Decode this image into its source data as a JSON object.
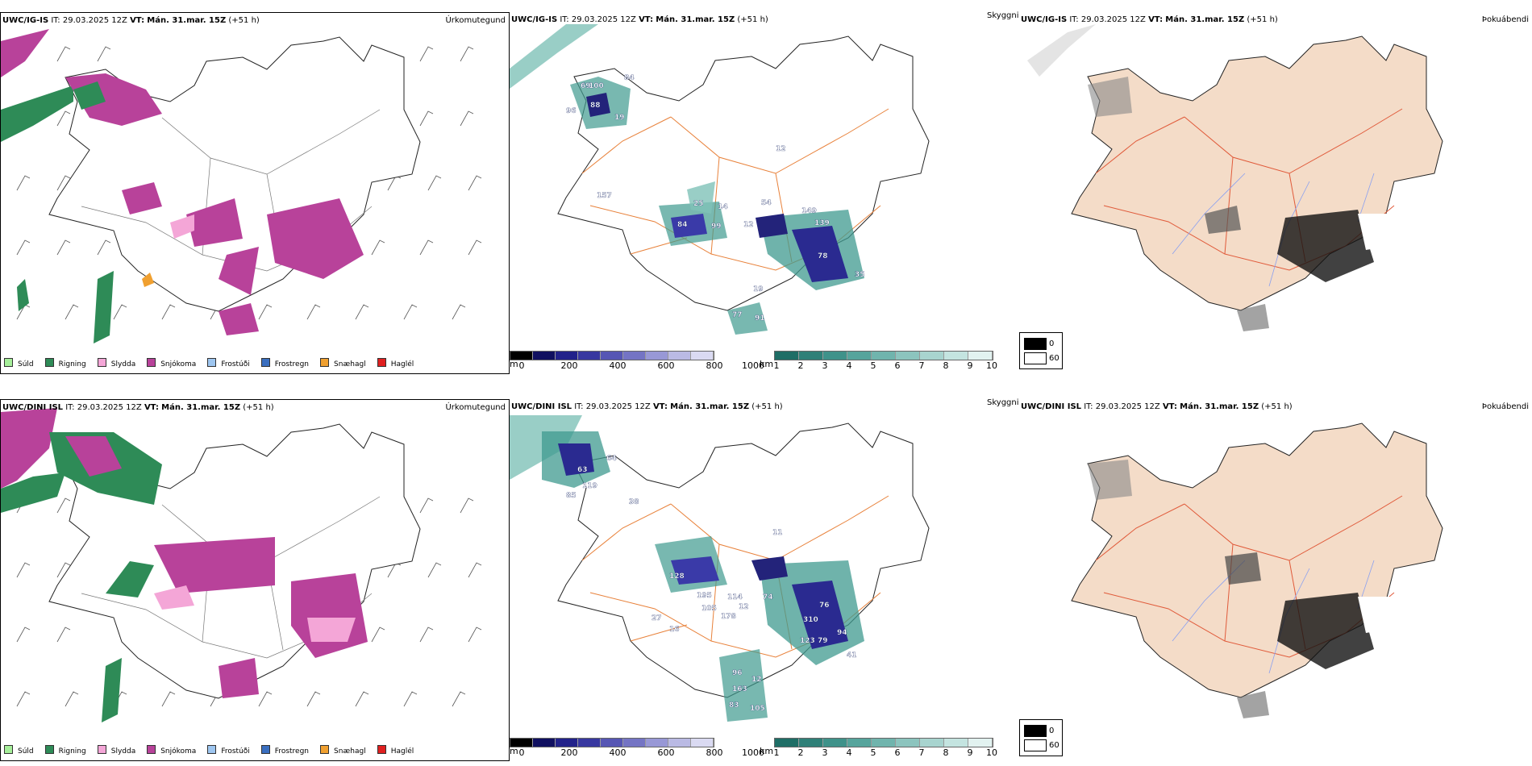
{
  "colors": {
    "sudd": "#a6ef9a",
    "rigning": "#2e8b57",
    "slydda": "#f4a6d7",
    "snjokoma": "#b8429a",
    "frostudi": "#9ec6f0",
    "frostregn": "#3a6fc0",
    "snaehagl": "#f0a030",
    "haglel": "#e02020",
    "land_orange": "#f4dcc8",
    "road_orange": "#e8813a",
    "teal": "#3f9a8f",
    "navy": "#23237a"
  },
  "rows": [
    {
      "left": {
        "model": "UWC/IG-IS",
        "it_label": "IT:",
        "it_value": "29.03.2025 12Z",
        "vt_label": "VT:",
        "vt_value": "Mán. 31.mar. 15Z",
        "lead": "(+51 h)",
        "title_right": "Úrkomutegund"
      },
      "middle": {
        "model": "UWC/IG-IS",
        "it_label": "IT:",
        "it_value": "29.03.2025 12Z",
        "vt_label": "VT:",
        "vt_value": "Mán. 31.mar. 15Z",
        "lead": "(+51 h)",
        "title_right": "Skyggni",
        "labels": [
          "84",
          "69",
          "100",
          "88",
          "96",
          "19",
          "12",
          "157",
          "54",
          "149",
          "139",
          "84",
          "99",
          "12",
          "78",
          "35",
          "19",
          "77",
          "91",
          "14",
          "25"
        ]
      },
      "right": {
        "model": "UWC/IG-IS",
        "it_label": "IT:",
        "it_value": "29.03.2025 12Z",
        "vt_label": "VT:",
        "vt_value": "Mán. 31.mar. 15Z",
        "lead": "(+51 h)",
        "title_right": "Þokuábendi"
      }
    },
    {
      "left": {
        "model": "UWC/DINI ISL",
        "it_label": "IT:",
        "it_value": "29.03.2025 12Z",
        "vt_label": "VT:",
        "vt_value": "Mán. 31.mar. 15Z",
        "lead": "(+51 h)",
        "title_right": "Úrkomutegund"
      },
      "middle": {
        "model": "UWC/DINI ISL",
        "it_label": "IT:",
        "it_value": "29.03.2025 12Z",
        "vt_label": "VT:",
        "vt_value": "Mán. 31.mar. 15Z",
        "lead": "(+51 h)",
        "title_right": "Skyggni",
        "labels": [
          "64",
          "63",
          "119",
          "85",
          "38",
          "11",
          "128",
          "195",
          "114",
          "74",
          "12",
          "105",
          "178",
          "27",
          "16",
          "123",
          "79",
          "94",
          "41",
          "96",
          "12",
          "163",
          "83",
          "105",
          "310",
          "76"
        ]
      },
      "right": {
        "model": "UWC/DINI ISL",
        "it_label": "IT:",
        "it_value": "29.03.2025 12Z",
        "vt_label": "VT:",
        "vt_value": "Mán. 31.mar. 15Z",
        "lead": "(+51 h)",
        "title_right": "Þokuábendi"
      }
    }
  ],
  "precip_legend": [
    "Súld",
    "Rigning",
    "Slydda",
    "Snjókoma",
    "Frostúði",
    "Frostregn",
    "Snæhagl",
    "Haglél"
  ],
  "cbar_height": {
    "unit": "m",
    "ticks": [
      "0",
      "200",
      "400",
      "600",
      "800",
      "1000"
    ]
  },
  "cbar_vis": {
    "unit": "km",
    "ticks": [
      "1",
      "2",
      "3",
      "4",
      "5",
      "6",
      "7",
      "8",
      "9",
      "10"
    ]
  },
  "fog_legend": {
    "min": "0",
    "max": "60"
  }
}
